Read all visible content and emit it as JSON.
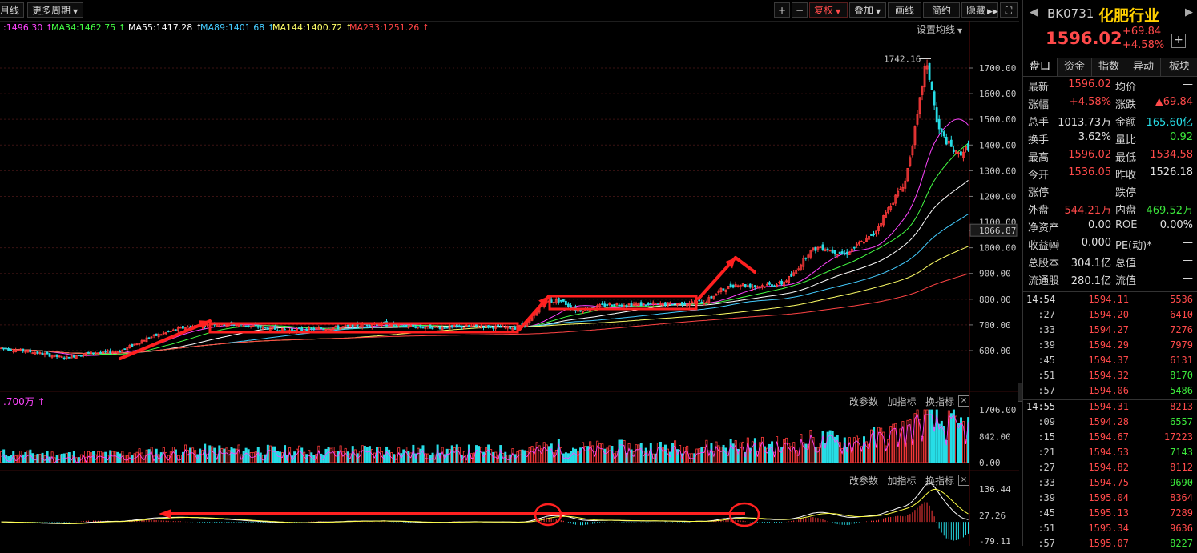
{
  "toolbar": {
    "left": [
      "月线",
      "更多周期"
    ],
    "right": [
      "+",
      "−",
      "复权",
      "叠加",
      "画线",
      "简约",
      "隐藏",
      "⛶"
    ]
  },
  "ma_legend": [
    {
      "label": ":1496.30",
      "color": "#ff44ff"
    },
    {
      "label": "MA34:1462.75",
      "color": "#44ff44"
    },
    {
      "label": "MA55:1417.28",
      "color": "#ffffff"
    },
    {
      "label": "MA89:1401.68",
      "color": "#44ccff"
    },
    {
      "label": "MA144:1400.72",
      "color": "#ffff66"
    },
    {
      "label": "MA233:1251.26",
      "color": "#ff4444"
    }
  ],
  "ma_arrow": "↑",
  "settings_ma": "设置均线",
  "price_axis": [
    "1700.00",
    "1600.00",
    "1500.00",
    "1400.00",
    "1300.00",
    "1200.00",
    "1100.00",
    "1066.87",
    "1000.00",
    "900.00",
    "800.00",
    "700.00",
    "600.00"
  ],
  "price_levels": [
    1700,
    1600,
    1500,
    1400,
    1300,
    1200,
    1100,
    1066.87,
    1000,
    900,
    800,
    700,
    600
  ],
  "high_label": "1742.16",
  "high_value": 1742.16,
  "vol_panel": {
    "label": ".700万",
    "arrow": "↑",
    "buttons": [
      "改参数",
      "加指标",
      "换指标"
    ],
    "close": "×",
    "axis": [
      "1706.00",
      "842.00",
      "0.00"
    ],
    "axis_values": [
      1706,
      842,
      0
    ]
  },
  "macd_panel": {
    "buttons": [
      "改参数",
      "加指标",
      "换指标"
    ],
    "close": "×",
    "axis": [
      "136.44",
      "27.26",
      "-79.11"
    ],
    "axis_values": [
      136.44,
      27.26,
      -79.11
    ]
  },
  "stock": {
    "code": "BK0731",
    "name": "化肥行业",
    "price": "1596.02",
    "change": "+69.84",
    "change_pct": "+4.58%"
  },
  "tabs": [
    "盘口",
    "资金",
    "指数",
    "异动",
    "板块"
  ],
  "quote": [
    {
      "l1": "最新",
      "v1": "1596.02",
      "c1": "up",
      "l2": "均价",
      "v2": "—",
      "c2": "wh"
    },
    {
      "l1": "涨幅",
      "v1": "+4.58%",
      "c1": "up",
      "l2": "涨跌",
      "v2": "▲69.84",
      "c2": "up"
    },
    {
      "l1": "总手",
      "v1": "1013.73万",
      "c1": "wh",
      "l2": "金额",
      "v2": "165.60亿",
      "c2": "cy"
    },
    {
      "l1": "换手",
      "v1": "3.62%",
      "c1": "wh",
      "l2": "量比",
      "v2": "0.92",
      "c2": "dn"
    },
    {
      "l1": "最高",
      "v1": "1596.02",
      "c1": "up",
      "l2": "最低",
      "v2": "1534.58",
      "c2": "up"
    },
    {
      "l1": "今开",
      "v1": "1536.05",
      "c1": "up",
      "l2": "昨收",
      "v2": "1526.18",
      "c2": "wh"
    },
    {
      "l1": "涨停",
      "v1": "—",
      "c1": "up",
      "l2": "跌停",
      "v2": "—",
      "c2": "dn"
    },
    {
      "l1": "外盘",
      "v1": "544.21万",
      "c1": "up",
      "l2": "内盘",
      "v2": "469.52万",
      "c2": "dn"
    },
    {
      "l1": "净资产",
      "v1": "0.00",
      "c1": "wh",
      "l2": "ROE",
      "v2": "0.00%",
      "c2": "wh"
    },
    {
      "l1": "收益㈣",
      "v1": "0.000",
      "c1": "wh",
      "l2": "PE(动)*",
      "v2": "—",
      "c2": "wh"
    },
    {
      "l1": "总股本",
      "v1": "304.1亿",
      "c1": "wh",
      "l2": "总值",
      "v2": "—",
      "c2": "wh"
    },
    {
      "l1": "流通股",
      "v1": "280.1亿",
      "c1": "wh",
      "l2": "流值",
      "v2": "—",
      "c2": "wh"
    }
  ],
  "ticks": [
    {
      "t": "14:54",
      "p": "1594.11",
      "v": "5536",
      "c": "up"
    },
    {
      "t": ":27",
      "p": "1594.20",
      "v": "6410",
      "c": "up"
    },
    {
      "t": ":33",
      "p": "1594.27",
      "v": "7276",
      "c": "up"
    },
    {
      "t": ":39",
      "p": "1594.29",
      "v": "7979",
      "c": "up"
    },
    {
      "t": ":45",
      "p": "1594.37",
      "v": "6131",
      "c": "up"
    },
    {
      "t": ":51",
      "p": "1594.32",
      "v": "8170",
      "c": "dn"
    },
    {
      "t": ":57",
      "p": "1594.06",
      "v": "5486",
      "c": "dn"
    },
    {
      "t": "14:55",
      "p": "1594.31",
      "v": "8213",
      "c": "up"
    },
    {
      "t": ":09",
      "p": "1594.28",
      "v": "6557",
      "c": "dn"
    },
    {
      "t": ":15",
      "p": "1594.67",
      "v": "17223",
      "c": "up"
    },
    {
      "t": ":21",
      "p": "1594.53",
      "v": "7143",
      "c": "dn"
    },
    {
      "t": ":27",
      "p": "1594.82",
      "v": "8112",
      "c": "up"
    },
    {
      "t": ":33",
      "p": "1594.75",
      "v": "9690",
      "c": "dn"
    },
    {
      "t": ":39",
      "p": "1595.04",
      "v": "8364",
      "c": "up"
    },
    {
      "t": ":45",
      "p": "1595.13",
      "v": "7289",
      "c": "up"
    },
    {
      "t": ":51",
      "p": "1595.34",
      "v": "9636",
      "c": "up"
    },
    {
      "t": ":57",
      "p": "1595.07",
      "v": "8227",
      "c": "dn"
    }
  ],
  "colors": {
    "up": "#ff4a4a",
    "down": "#3ce83c",
    "cyan": "#27dde6",
    "annotation": "#ff2020"
  }
}
